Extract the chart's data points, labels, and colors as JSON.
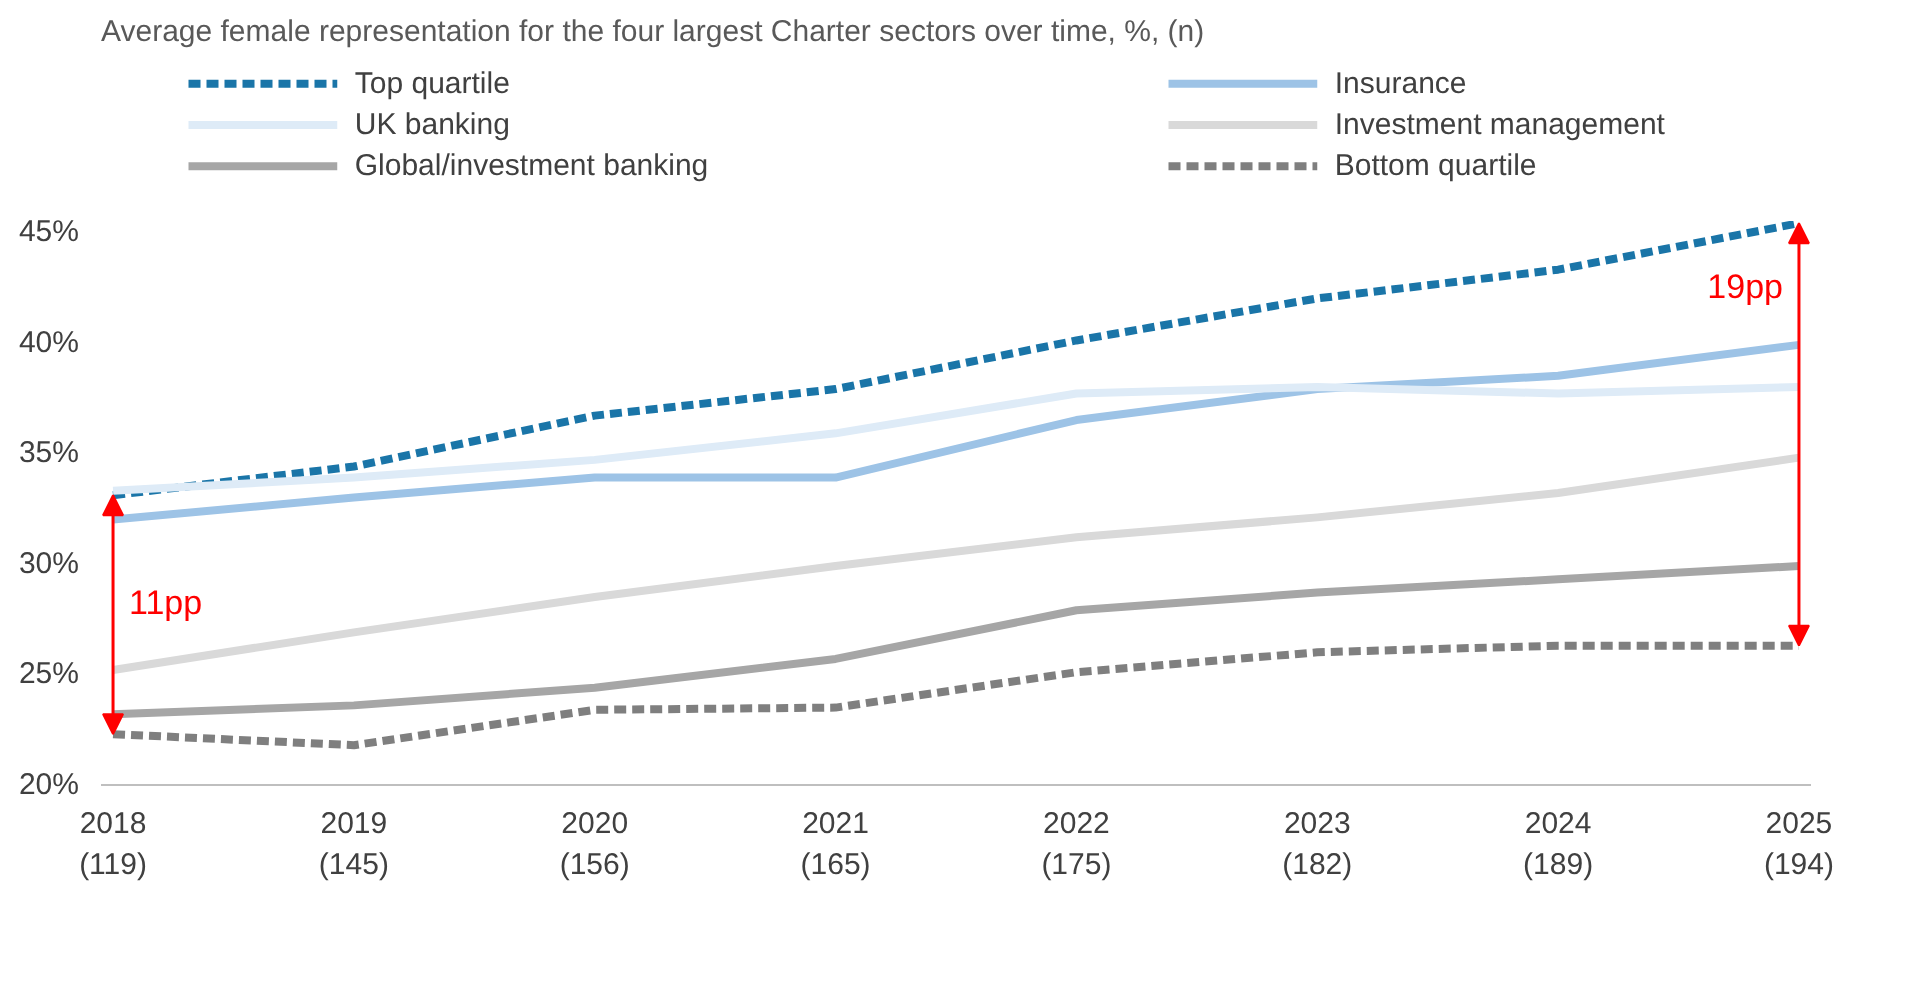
{
  "chart_data": {
    "type": "line",
    "title": "Average female representation for the four largest Charter sectors over time, %, (n)",
    "categories": [
      "2018\n(119)",
      "2019\n(145)",
      "2020\n(156)",
      "2021\n(165)",
      "2022\n(175)",
      "2023\n(182)",
      "2024\n(189)",
      "2025\n(194)"
    ],
    "series": [
      {
        "name": "Top quartile",
        "color": "#1a75a8",
        "line_style": "dashed",
        "values": [
          33.1,
          34.4,
          36.7,
          37.9,
          40.1,
          42.0,
          43.3,
          45.4
        ]
      },
      {
        "name": "Insurance",
        "color": "#9dc3e6",
        "line_style": "solid",
        "values": [
          32.0,
          33.0,
          33.9,
          33.9,
          36.5,
          37.9,
          38.5,
          39.9
        ]
      },
      {
        "name": "UK banking",
        "color": "#deebf7",
        "line_style": "solid",
        "values": [
          33.3,
          33.9,
          34.7,
          35.9,
          37.7,
          38.0,
          37.7,
          38.0
        ]
      },
      {
        "name": "Investment management",
        "color": "#d9d9d9",
        "line_style": "solid",
        "values": [
          25.2,
          26.9,
          28.5,
          29.9,
          31.2,
          32.1,
          33.2,
          34.8
        ]
      },
      {
        "name": "Global/investment banking",
        "color": "#a6a6a6",
        "line_style": "solid",
        "values": [
          23.2,
          23.6,
          24.4,
          25.7,
          27.9,
          28.7,
          29.3,
          29.9
        ]
      },
      {
        "name": "Bottom quartile",
        "color": "#7f7f7f",
        "line_style": "dashed",
        "values": [
          22.3,
          21.8,
          23.4,
          23.5,
          25.1,
          26.0,
          26.3,
          26.3
        ]
      }
    ],
    "ylim": [
      20,
      45.5
    ],
    "yticks": [
      {
        "value": 20,
        "label": "20%"
      },
      {
        "value": 25,
        "label": "25%"
      },
      {
        "value": 30,
        "label": "30%"
      },
      {
        "value": 35,
        "label": "35%"
      },
      {
        "value": 40,
        "label": "40%"
      },
      {
        "value": 45,
        "label": "45%"
      }
    ],
    "annotations": [
      "11pp",
      "19pp"
    ],
    "grid": false,
    "legend": "top",
    "marker": "none"
  }
}
